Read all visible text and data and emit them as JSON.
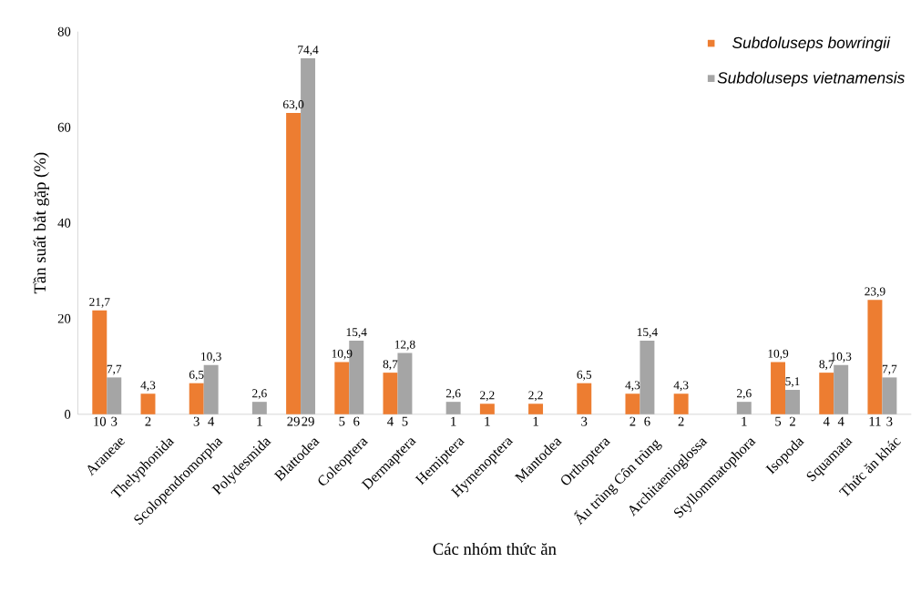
{
  "chart_data": {
    "type": "bar",
    "xlabel": "Các nhóm thức ăn",
    "ylabel": "Tần suất bắt gặp (%)",
    "categories": [
      "Araneae",
      "Thelyphonida",
      "Scolopendromorpha",
      "Polydesmida",
      "Blattodea",
      "Coleoptera",
      "Dermaptera",
      "Hemiptera",
      "Hymenoptera",
      "Mantodea",
      "Orthoptera",
      "Ấu trùng Côn trùng",
      "Architaenioglossa",
      "Styllommatophora",
      "Isopoda",
      "Squamata",
      "Thức ăn khác"
    ],
    "series": [
      {
        "name": "Subdoluseps bowringii",
        "color": "#ed7d31",
        "values": [
          21.7,
          4.3,
          6.5,
          null,
          63.0,
          10.9,
          8.7,
          null,
          2.2,
          2.2,
          6.5,
          4.3,
          4.3,
          null,
          10.9,
          8.7,
          23.9
        ],
        "value_labels": [
          "21,7",
          "4,3",
          "6,5",
          null,
          "63,0",
          "10,9",
          "8,7",
          null,
          "2,2",
          "2,2",
          "6,5",
          "4,3",
          "4,3",
          null,
          "10,9",
          "8,7",
          "23,9"
        ]
      },
      {
        "name": "Subdoluseps vietnamensis",
        "color": "#a5a5a5",
        "values": [
          7.7,
          null,
          10.3,
          2.6,
          74.4,
          15.4,
          12.8,
          2.6,
          null,
          null,
          null,
          15.4,
          null,
          2.6,
          5.1,
          10.3,
          7.7
        ],
        "value_labels": [
          "7,7",
          null,
          "10,3",
          "2,6",
          "74,4",
          "15,4",
          "12,8",
          "2,6",
          null,
          null,
          null,
          "15,4",
          null,
          "2,6",
          "5,1",
          "10,3",
          "7,7"
        ]
      }
    ],
    "ylim": [
      0,
      80
    ],
    "yticks": [
      0,
      20,
      40,
      60,
      80
    ],
    "legend": "top right",
    "annotations": [
      "10",
      "3",
      "2",
      "3",
      "4",
      "1",
      "29",
      "29",
      "5",
      "6",
      "4",
      "5",
      "1",
      "1",
      "1",
      "3",
      "2",
      "6",
      "2",
      "1",
      "5",
      "2",
      "4",
      "4",
      "11",
      "3"
    ]
  }
}
